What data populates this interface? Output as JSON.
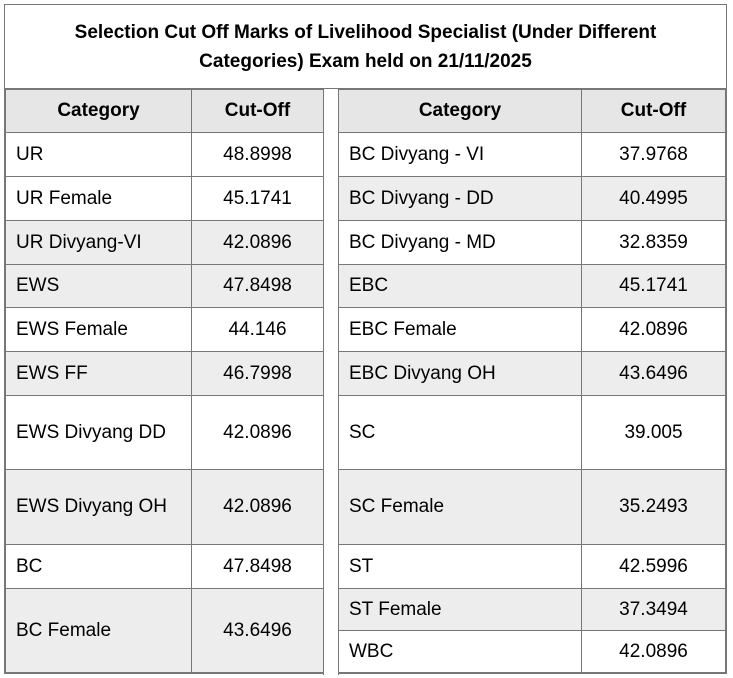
{
  "title": "Selection Cut Off Marks of Livelihood Specialist (Under Different Categories) Exam held on 21/11/2025",
  "headers": {
    "category": "Category",
    "cutoff": "Cut-Off"
  },
  "left": [
    {
      "category": "UR",
      "cutoff": "48.8998"
    },
    {
      "category": "UR Female",
      "cutoff": "45.1741"
    },
    {
      "category": "UR Divyang-VI",
      "cutoff": "42.0896"
    },
    {
      "category": "EWS",
      "cutoff": "47.8498"
    },
    {
      "category": "EWS Female",
      "cutoff": "44.146"
    },
    {
      "category": "EWS FF",
      "cutoff": "46.7998"
    },
    {
      "category": "EWS Divyang DD",
      "cutoff": "42.0896"
    },
    {
      "category": "EWS Divyang OH",
      "cutoff": "42.0896"
    },
    {
      "category": "BC",
      "cutoff": "47.8498"
    },
    {
      "category": "BC Female",
      "cutoff": "43.6496"
    }
  ],
  "right": [
    {
      "category": "BC Divyang - VI",
      "cutoff": "37.9768"
    },
    {
      "category": "BC Divyang - DD",
      "cutoff": "40.4995"
    },
    {
      "category": "BC Divyang - MD",
      "cutoff": "32.8359"
    },
    {
      "category": "EBC",
      "cutoff": "45.1741"
    },
    {
      "category": "EBC Female",
      "cutoff": "42.0896"
    },
    {
      "category": "EBC Divyang OH",
      "cutoff": "43.6496"
    },
    {
      "category": "SC",
      "cutoff": "39.005"
    },
    {
      "category": "SC Female",
      "cutoff": "35.2493"
    },
    {
      "category": "ST",
      "cutoff": "42.5996"
    },
    {
      "category": "ST Female",
      "cutoff": "37.3494"
    },
    {
      "category": "WBC",
      "cutoff": "42.0896"
    }
  ]
}
